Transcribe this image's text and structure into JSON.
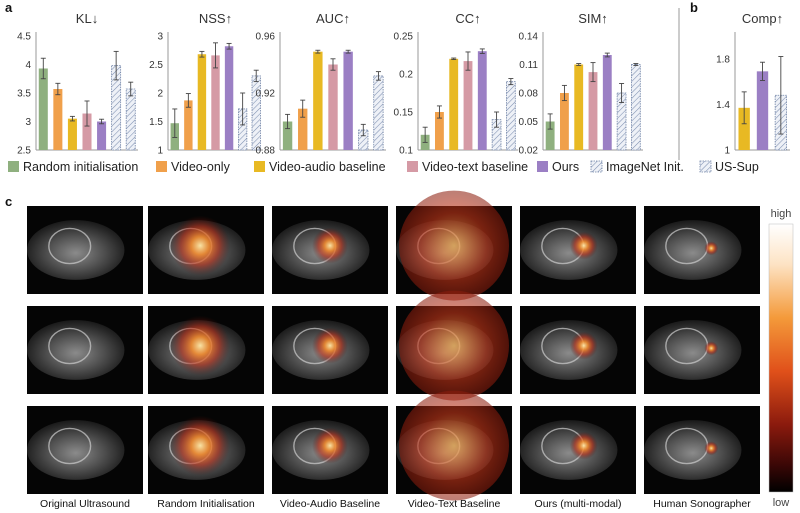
{
  "panels": {
    "a": "a",
    "b": "b",
    "c": "c"
  },
  "colors": {
    "random": "#8fb07f",
    "video_only": "#f0a04b",
    "video_audio": "#e8b923",
    "video_text": "#d59aa5",
    "ours": "#9b7fc4",
    "imagenet": "#e4e9f3",
    "us_sup": "#dde6f0"
  },
  "legend": [
    {
      "key": "random",
      "label": "Random initialisation",
      "hatched": false
    },
    {
      "key": "video_only",
      "label": "Video-only",
      "hatched": false
    },
    {
      "key": "video_audio",
      "label": "Video-audio baseline",
      "hatched": false
    },
    {
      "key": "video_text",
      "label": "Video-text baseline",
      "hatched": false
    },
    {
      "key": "ours",
      "label": "Ours",
      "hatched": false
    },
    {
      "key": "imagenet",
      "label": "ImageNet Init.",
      "hatched": true
    },
    {
      "key": "us_sup",
      "label": "US-Sup",
      "hatched": true
    }
  ],
  "chart_data": [
    {
      "id": "kl",
      "type": "bar",
      "title": "KL↓",
      "ylim": [
        2.5,
        4.5
      ],
      "yticks": [
        "2.5",
        "3",
        "3.5",
        "4",
        "4.5"
      ],
      "series": [
        {
          "name": "Random initialisation",
          "key": "random",
          "value": 3.93,
          "err": 0.18
        },
        {
          "name": "Video-only",
          "key": "video_only",
          "value": 3.57,
          "err": 0.1
        },
        {
          "name": "Video-audio baseline",
          "key": "video_audio",
          "value": 3.05,
          "err": 0.04
        },
        {
          "name": "Video-text baseline",
          "key": "video_text",
          "value": 3.14,
          "err": 0.22
        },
        {
          "name": "Ours",
          "key": "ours",
          "value": 3.0,
          "err": 0.04
        },
        {
          "name": "ImageNet Init.",
          "key": "imagenet",
          "value": 3.98,
          "err": 0.25
        },
        {
          "name": "US-Sup",
          "key": "us_sup",
          "value": 3.57,
          "err": 0.12
        }
      ]
    },
    {
      "id": "nss",
      "type": "bar",
      "title": "NSS↑",
      "ylim": [
        1,
        3
      ],
      "yticks": [
        "1",
        "1.5",
        "2",
        "2.5",
        "3"
      ],
      "series": [
        {
          "name": "Random initialisation",
          "key": "random",
          "value": 1.47,
          "err": 0.25
        },
        {
          "name": "Video-only",
          "key": "video_only",
          "value": 1.87,
          "err": 0.12
        },
        {
          "name": "Video-audio baseline",
          "key": "video_audio",
          "value": 2.68,
          "err": 0.05
        },
        {
          "name": "Video-text baseline",
          "key": "video_text",
          "value": 2.66,
          "err": 0.22
        },
        {
          "name": "Ours",
          "key": "ours",
          "value": 2.82,
          "err": 0.05
        },
        {
          "name": "ImageNet Init.",
          "key": "imagenet",
          "value": 1.72,
          "err": 0.28
        },
        {
          "name": "US-Sup",
          "key": "us_sup",
          "value": 2.3,
          "err": 0.1
        }
      ]
    },
    {
      "id": "auc",
      "type": "bar",
      "title": "AUC↑",
      "ylim": [
        0.88,
        0.96
      ],
      "yticks": [
        "0.88",
        "0.92",
        "0.96"
      ],
      "series": [
        {
          "name": "Random initialisation",
          "key": "random",
          "value": 0.9,
          "err": 0.005
        },
        {
          "name": "Video-only",
          "key": "video_only",
          "value": 0.909,
          "err": 0.006
        },
        {
          "name": "Video-audio baseline",
          "key": "video_audio",
          "value": 0.949,
          "err": 0.001
        },
        {
          "name": "Video-text baseline",
          "key": "video_text",
          "value": 0.94,
          "err": 0.004
        },
        {
          "name": "Ours",
          "key": "ours",
          "value": 0.949,
          "err": 0.001
        },
        {
          "name": "ImageNet Init.",
          "key": "imagenet",
          "value": 0.894,
          "err": 0.004
        },
        {
          "name": "US-Sup",
          "key": "us_sup",
          "value": 0.932,
          "err": 0.003
        }
      ]
    },
    {
      "id": "cc",
      "type": "bar",
      "title": "CC↑",
      "ylim": [
        0.1,
        0.25
      ],
      "yticks": [
        "0.1",
        "0.15",
        "0.2",
        "0.25"
      ],
      "series": [
        {
          "name": "Random initialisation",
          "key": "random",
          "value": 0.12,
          "err": 0.01
        },
        {
          "name": "Video-only",
          "key": "video_only",
          "value": 0.15,
          "err": 0.008
        },
        {
          "name": "Video-audio baseline",
          "key": "video_audio",
          "value": 0.22,
          "err": 0.001
        },
        {
          "name": "Video-text baseline",
          "key": "video_text",
          "value": 0.217,
          "err": 0.012
        },
        {
          "name": "Ours",
          "key": "ours",
          "value": 0.23,
          "err": 0.003
        },
        {
          "name": "ImageNet Init.",
          "key": "imagenet",
          "value": 0.14,
          "err": 0.01
        },
        {
          "name": "US-Sup",
          "key": "us_sup",
          "value": 0.19,
          "err": 0.004
        }
      ]
    },
    {
      "id": "sim",
      "type": "bar",
      "title": "SIM↑",
      "ylim": [
        0.02,
        0.14
      ],
      "yticks": [
        "0.02",
        "0.05",
        "0.08",
        "0.11",
        "0.14"
      ],
      "series": [
        {
          "name": "Random initialisation",
          "key": "random",
          "value": 0.05,
          "err": 0.008
        },
        {
          "name": "Video-only",
          "key": "video_only",
          "value": 0.08,
          "err": 0.008
        },
        {
          "name": "Video-audio baseline",
          "key": "video_audio",
          "value": 0.11,
          "err": 0.001
        },
        {
          "name": "Video-text baseline",
          "key": "video_text",
          "value": 0.102,
          "err": 0.01
        },
        {
          "name": "Ours",
          "key": "ours",
          "value": 0.12,
          "err": 0.002
        },
        {
          "name": "ImageNet Init.",
          "key": "imagenet",
          "value": 0.08,
          "err": 0.01
        },
        {
          "name": "US-Sup",
          "key": "us_sup",
          "value": 0.11,
          "err": 0.001
        }
      ]
    },
    {
      "id": "comp",
      "type": "bar",
      "title": "Comp↑",
      "ylim": [
        1,
        2
      ],
      "yticks": [
        "1",
        "1.4",
        "1.8"
      ],
      "series": [
        {
          "name": "Video-audio baseline",
          "key": "video_audio",
          "value": 1.37,
          "err": 0.14
        },
        {
          "name": "Ours",
          "key": "ours",
          "value": 1.69,
          "err": 0.08
        },
        {
          "name": "US-Sup",
          "key": "us_sup",
          "value": 1.48,
          "err": 0.34
        }
      ]
    }
  ],
  "image_grid": {
    "columns": [
      "Original Ultrasound",
      "Random Initialisation",
      "Video-Audio Baseline",
      "Video-Text Baseline",
      "Ours (multi-modal)",
      "Human Sonographer"
    ],
    "colorbar": {
      "high": "high",
      "low": "low"
    }
  }
}
